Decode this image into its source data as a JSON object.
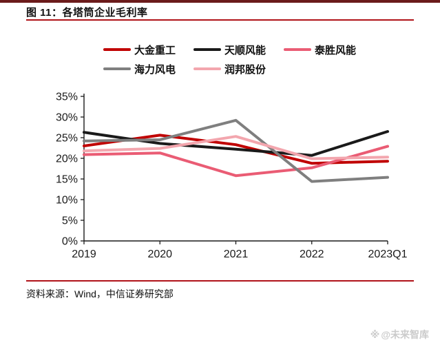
{
  "page": {
    "figure_title": "图 11：各塔筒企业毛利率",
    "source": "资料来源：Wind，中信证券研究部",
    "watermark_icon": "※",
    "watermark_text": "@未来智库"
  },
  "colors": {
    "top_border": "#6B1B1B",
    "rule": "#B01218",
    "axis": "#1A1A1A",
    "watermark": "#CBCBCB"
  },
  "chart_data": {
    "type": "line",
    "title": "各塔筒企业毛利率",
    "categories": [
      "2019",
      "2020",
      "2021",
      "2022",
      "2023Q1"
    ],
    "series": [
      {
        "name": "大金重工",
        "color": "#C00000",
        "values": [
          23.0,
          25.6,
          23.3,
          18.8,
          19.3
        ]
      },
      {
        "name": "天顺风能",
        "color": "#1A1A1A",
        "values": [
          26.3,
          23.6,
          22.2,
          20.7,
          26.5
        ]
      },
      {
        "name": "泰胜风能",
        "color": "#EA5C74",
        "values": [
          20.9,
          21.3,
          15.8,
          17.7,
          22.9
        ]
      },
      {
        "name": "海力风电",
        "color": "#7F7F7F",
        "values": [
          24.2,
          24.5,
          29.2,
          14.4,
          15.4
        ]
      },
      {
        "name": "润邦股份",
        "color": "#F3A6AE",
        "values": [
          21.8,
          22.4,
          25.3,
          19.9,
          20.3
        ]
      }
    ],
    "ylim": [
      0,
      35
    ],
    "ytick_step": 5,
    "ytick_suffix": "%",
    "grid": false,
    "legend_position": "top"
  }
}
